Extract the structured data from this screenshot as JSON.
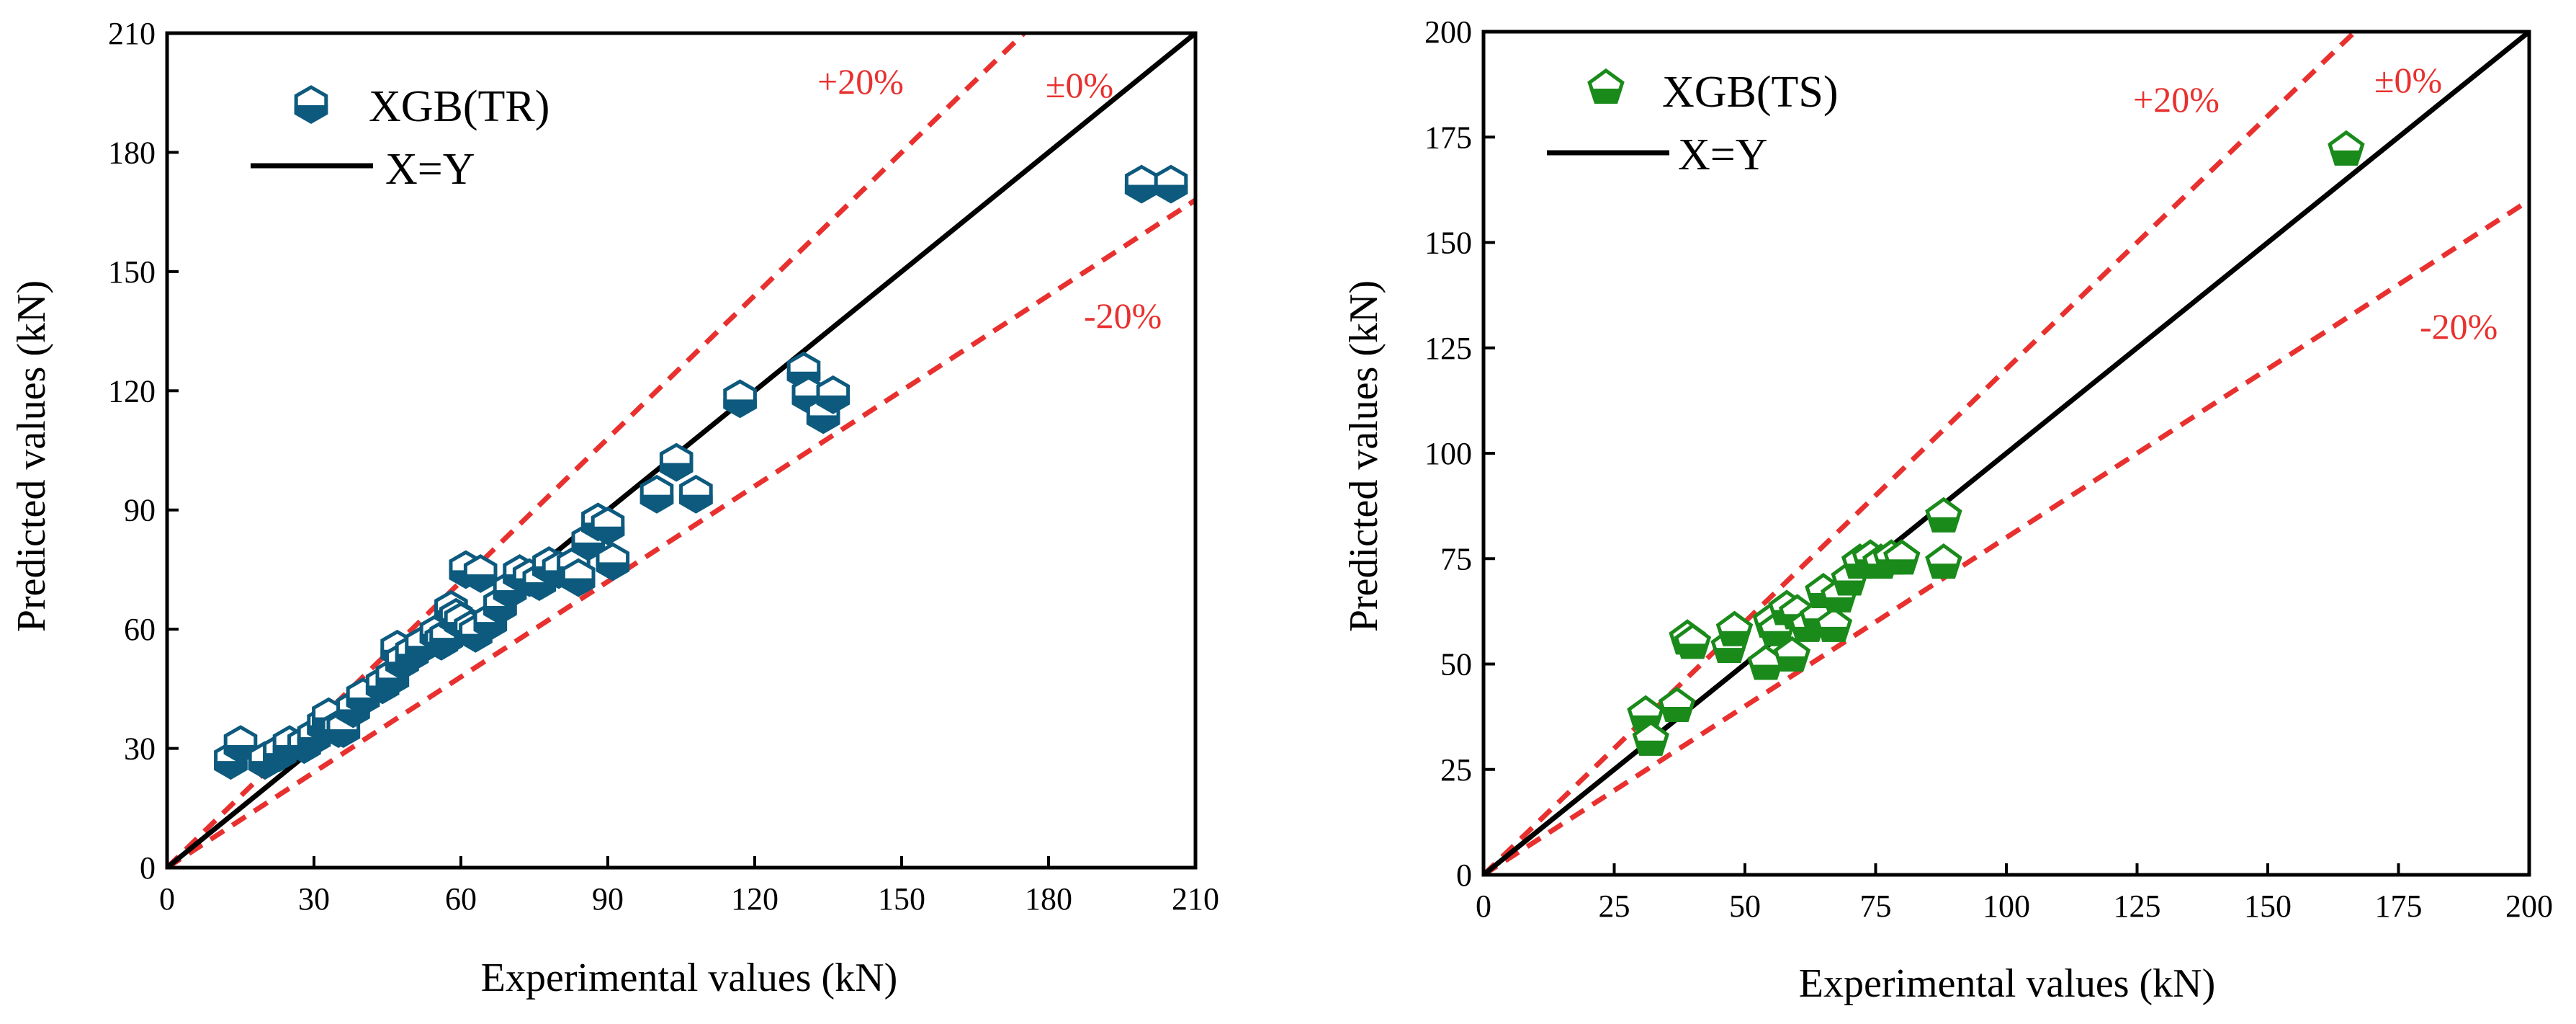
{
  "colors": {
    "series_tr": "#0d5a7e",
    "series_ts": "#1a8a1a",
    "bound": "#e8312f",
    "identity": "#000000"
  },
  "chart_data": [
    {
      "type": "scatter",
      "xlabel": "Experimental values (kN)",
      "ylabel": "Predicted values (kN)",
      "xlim": [
        0,
        210
      ],
      "ylim": [
        0,
        210
      ],
      "xticks": [
        "0",
        "30",
        "60",
        "90",
        "120",
        "150",
        "180",
        "210"
      ],
      "yticks": [
        "0",
        "30",
        "60",
        "90",
        "120",
        "150",
        "180",
        "210"
      ],
      "grid": false,
      "legend_position": "top-left",
      "legend": {
        "series": "XGB(TR)",
        "line": "X=Y"
      },
      "annotations": {
        "plus20": "+20%",
        "zero": "±0%",
        "minus20": "-20%"
      },
      "marker": "hexagon",
      "series": [
        {
          "name": "XGB(TR)",
          "x": [
            13,
            15,
            20,
            23,
            25,
            28,
            30,
            32,
            33,
            35,
            36,
            38,
            40,
            44,
            46,
            47,
            48,
            50,
            52,
            55,
            56,
            57,
            58,
            59,
            60,
            61,
            62,
            63,
            64,
            66,
            68,
            70,
            72,
            74,
            76,
            78,
            80,
            83,
            84,
            86,
            88,
            90,
            91,
            100,
            104,
            108,
            117,
            130,
            131,
            134,
            136,
            199,
            205
          ],
          "y": [
            27,
            31,
            27,
            29,
            31,
            31,
            33,
            36,
            38,
            35,
            35,
            40,
            43,
            46,
            48,
            55,
            52,
            54,
            56,
            59,
            57,
            58,
            65,
            63,
            62,
            75,
            60,
            59,
            74,
            62,
            66,
            70,
            74,
            73,
            72,
            76,
            75,
            76,
            73,
            82,
            87,
            86,
            77,
            94,
            102,
            94,
            118,
            125,
            119,
            114,
            119,
            172,
            172
          ]
        }
      ]
    },
    {
      "type": "scatter",
      "xlabel": "Experimental values (kN)",
      "ylabel": "Predicted values (kN)",
      "xlim": [
        0,
        200
      ],
      "ylim": [
        0,
        200
      ],
      "xticks": [
        "0",
        "25",
        "50",
        "75",
        "100",
        "125",
        "150",
        "175",
        "200"
      ],
      "yticks": [
        "0",
        "25",
        "50",
        "75",
        "100",
        "125",
        "150",
        "175",
        "200"
      ],
      "grid": false,
      "legend_position": "top-left",
      "legend": {
        "series": "XGB(TS)",
        "line": "X=Y"
      },
      "annotations": {
        "plus20": "+20%",
        "zero": "±0%",
        "minus20": "-20%"
      },
      "marker": "pentagon",
      "series": [
        {
          "name": "XGB(TS)",
          "x": [
            31,
            32,
            37,
            39,
            40,
            47,
            48,
            54,
            55,
            56,
            58,
            59,
            60,
            62,
            64,
            65,
            67,
            68,
            70,
            72,
            74,
            76,
            78,
            80,
            88,
            88,
            165
          ],
          "y": [
            38,
            32,
            40,
            56,
            55,
            54,
            58,
            50,
            60,
            58,
            63,
            52,
            62,
            59,
            61,
            67,
            59,
            66,
            70,
            74,
            75,
            74,
            75,
            75,
            85,
            74,
            172
          ]
        }
      ]
    }
  ]
}
